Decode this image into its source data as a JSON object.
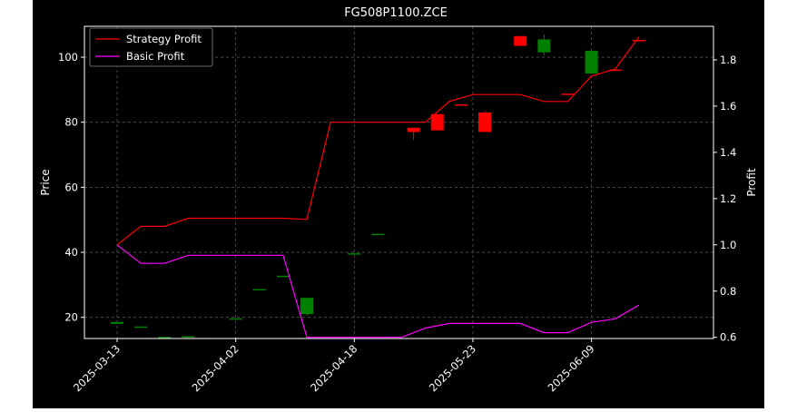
{
  "chart_data": {
    "type": "candlestick",
    "title": "FG508P1100.ZCE",
    "ylabel_left": "Price",
    "ylabel_right": "Profit",
    "xlabel": "",
    "ylim_left": [
      13.5,
      109.5
    ],
    "ylim_right": [
      0.595,
      1.945
    ],
    "grid": true,
    "legend_position": "top-left",
    "x_tick_labels": [
      "2025-03-13",
      "2025-04-02",
      "2025-04-18",
      "2025-05-23",
      "2025-06-09"
    ],
    "x_tick_positions": [
      0,
      5,
      10,
      15,
      20
    ],
    "y_ticks_left": [
      20,
      40,
      60,
      80,
      100
    ],
    "y_ticks_right": [
      0.6,
      0.8,
      1.0,
      1.2,
      1.4,
      1.6,
      1.8
    ],
    "candles": [
      {
        "x": 0,
        "open": 18.0,
        "close": 18.6,
        "high": 18.6,
        "low": 18.0
      },
      {
        "x": 1,
        "open": 17.0,
        "close": 17.2,
        "high": 17.2,
        "low": 17.0
      },
      {
        "x": 2,
        "open": 13.8,
        "close": 14.0,
        "high": 14.0,
        "low": 13.8
      },
      {
        "x": 3,
        "open": 14.0,
        "close": 14.2,
        "high": 14.2,
        "low": 14.0
      },
      {
        "x": 5,
        "open": 19.5,
        "close": 19.7,
        "high": 19.7,
        "low": 19.5
      },
      {
        "x": 6,
        "open": 28.5,
        "close": 28.7,
        "high": 28.7,
        "low": 28.5
      },
      {
        "x": 7,
        "open": 32.6,
        "close": 32.8,
        "high": 32.8,
        "low": 32.6
      },
      {
        "x": 8,
        "open": 21.0,
        "close": 26.0,
        "high": 26.0,
        "low": 20.5
      },
      {
        "x": 10,
        "open": 39.5,
        "close": 39.7,
        "high": 39.7,
        "low": 39.5
      },
      {
        "x": 11,
        "open": 45.5,
        "close": 45.7,
        "high": 45.7,
        "low": 45.5
      },
      {
        "x": 12.5,
        "open": 78.3,
        "close": 77.0,
        "high": 78.3,
        "low": 74.5
      },
      {
        "x": 13.5,
        "open": 82.5,
        "close": 77.5,
        "high": 82.5,
        "low": 77.5
      },
      {
        "x": 14.5,
        "open": 85.5,
        "close": 85.3,
        "high": 85.5,
        "low": 85.3
      },
      {
        "x": 15.5,
        "open": 83.0,
        "close": 77.0,
        "high": 83.5,
        "low": 77.0
      },
      {
        "x": 17,
        "open": 106.5,
        "close": 103.5,
        "high": 106.5,
        "low": 103.5
      },
      {
        "x": 18,
        "open": 101.5,
        "close": 105.5,
        "high": 107.0,
        "low": 100.5
      },
      {
        "x": 19,
        "open": 88.8,
        "close": 88.6,
        "high": 88.8,
        "low": 88.6
      },
      {
        "x": 20,
        "open": 95.0,
        "close": 102.0,
        "high": 102.0,
        "low": 95.0
      },
      {
        "x": 21,
        "open": 96.2,
        "close": 96.0,
        "high": 96.2,
        "low": 96.0
      },
      {
        "x": 22,
        "open": 105.3,
        "close": 105.1,
        "high": 105.3,
        "low": 105.1
      }
    ],
    "series": [
      {
        "name": "Strategy Profit",
        "color": "#ff0000",
        "x": [
          0,
          1,
          2,
          3,
          4,
          5,
          6,
          7,
          8,
          9,
          10,
          11,
          12,
          13,
          14,
          15,
          16,
          17,
          18,
          19,
          20,
          21,
          22
        ],
        "values": [
          1.0,
          1.08,
          1.08,
          1.115,
          1.115,
          1.115,
          1.115,
          1.115,
          1.11,
          1.53,
          1.53,
          1.53,
          1.53,
          1.53,
          1.62,
          1.65,
          1.65,
          1.65,
          1.62,
          1.62,
          1.73,
          1.76,
          1.9
        ]
      },
      {
        "name": "Basic Profit",
        "color": "#ff00ff",
        "x": [
          0,
          1,
          2,
          3,
          4,
          5,
          6,
          7,
          8,
          9,
          10,
          11,
          12,
          13,
          14,
          15,
          16,
          17,
          18,
          19,
          20,
          21,
          22
        ],
        "values": [
          1.0,
          0.92,
          0.92,
          0.955,
          0.955,
          0.955,
          0.955,
          0.955,
          0.6,
          0.6,
          0.6,
          0.6,
          0.6,
          0.64,
          0.66,
          0.66,
          0.66,
          0.66,
          0.62,
          0.62,
          0.665,
          0.68,
          0.74
        ]
      }
    ],
    "colors": {
      "up": "#008000",
      "down": "#ff0000",
      "grid": "#555555",
      "axes": "#ffffff",
      "background": "#000000"
    }
  }
}
